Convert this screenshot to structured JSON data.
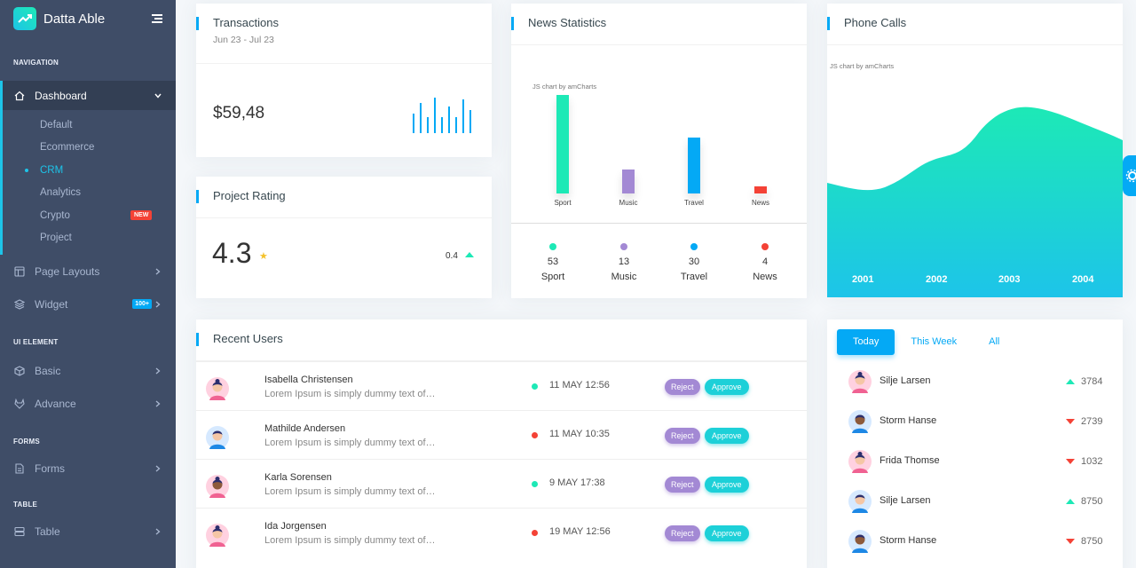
{
  "app": {
    "name": "Datta Able"
  },
  "sidebar": {
    "navigation_caption": "NAVIGATION",
    "dashboard_label": "Dashboard",
    "submenu": [
      {
        "label": "Default"
      },
      {
        "label": "Ecommerce"
      },
      {
        "label": "CRM",
        "current": true
      },
      {
        "label": "Analytics"
      },
      {
        "label": "Crypto",
        "badge": "NEW"
      },
      {
        "label": "Project"
      }
    ],
    "page_layouts_label": "Page Layouts",
    "widget_label": "Widget",
    "widget_badge": "100+",
    "ui_element_caption": "UI ELEMENT",
    "basic_label": "Basic",
    "advance_label": "Advance",
    "forms_caption": "FORMS",
    "forms_label": "Forms",
    "table_caption": "TABLE",
    "table_label": "Table"
  },
  "transactions": {
    "title": "Transactions",
    "date_range": "Jun 23 - Jul 23",
    "value": "$59,48",
    "spark_values": [
      0.55,
      0.85,
      0.45,
      1.0,
      0.45,
      0.75,
      0.45,
      0.95,
      0.65
    ]
  },
  "project_rating": {
    "title": "Project Rating",
    "value": "4.3",
    "change": "0.4"
  },
  "news_statistics": {
    "title": "News Statistics",
    "watermark": "JS chart by amCharts",
    "chart_data": {
      "type": "bar",
      "categories": [
        "Sport",
        "Music",
        "Travel",
        "News"
      ],
      "values": [
        53,
        13,
        30,
        4
      ],
      "colors": [
        "#1de9b6",
        "#a389d4",
        "#04a9f5",
        "#f44236"
      ]
    },
    "stats": [
      {
        "value": "53",
        "label": "Sport",
        "color": "#1de9b6"
      },
      {
        "value": "13",
        "label": "Music",
        "color": "#a389d4"
      },
      {
        "value": "30",
        "label": "Travel",
        "color": "#04a9f5"
      },
      {
        "value": "4",
        "label": "News",
        "color": "#f44236"
      }
    ]
  },
  "phone_calls": {
    "title": "Phone Calls",
    "watermark": "JS chart by amCharts",
    "chart_data": {
      "type": "area",
      "x": [
        "2001",
        "2002",
        "2003",
        "2004"
      ],
      "xlabels": [
        "2001",
        "2002",
        "2003",
        "2004"
      ]
    }
  },
  "recent_users": {
    "title": "Recent Users",
    "reject_label": "Reject",
    "approve_label": "Approve",
    "rows": [
      {
        "name": "Isabella Christensen",
        "desc": "Lorem Ipsum is simply dummy text of…",
        "date": "11 MAY 12:56",
        "status_color": "#1de9b6",
        "avatar": "female"
      },
      {
        "name": "Mathilde Andersen",
        "desc": "Lorem Ipsum is simply dummy text of…",
        "date": "11 MAY 10:35",
        "status_color": "#f44236",
        "avatar": "male"
      },
      {
        "name": "Karla Sorensen",
        "desc": "Lorem Ipsum is simply dummy text of…",
        "date": "9 MAY 17:38",
        "status_color": "#1de9b6",
        "avatar": "female-dark"
      },
      {
        "name": "Ida Jorgensen",
        "desc": "Lorem Ipsum is simply dummy text of…",
        "date": "19 MAY 12:56",
        "status_color": "#f44236",
        "avatar": "female"
      }
    ]
  },
  "activity": {
    "tabs": [
      "Today",
      "This Week",
      "All"
    ],
    "rows": [
      {
        "name": "Silje Larsen",
        "value": "3784",
        "trend": "up",
        "avatar": "female"
      },
      {
        "name": "Storm Hanse",
        "value": "2739",
        "trend": "down",
        "avatar": "male-dark"
      },
      {
        "name": "Frida Thomse",
        "value": "1032",
        "trend": "down",
        "avatar": "female"
      },
      {
        "name": "Silje Larsen",
        "value": "8750",
        "trend": "up",
        "avatar": "male"
      },
      {
        "name": "Storm Hanse",
        "value": "8750",
        "trend": "down",
        "avatar": "male-dark"
      }
    ]
  }
}
